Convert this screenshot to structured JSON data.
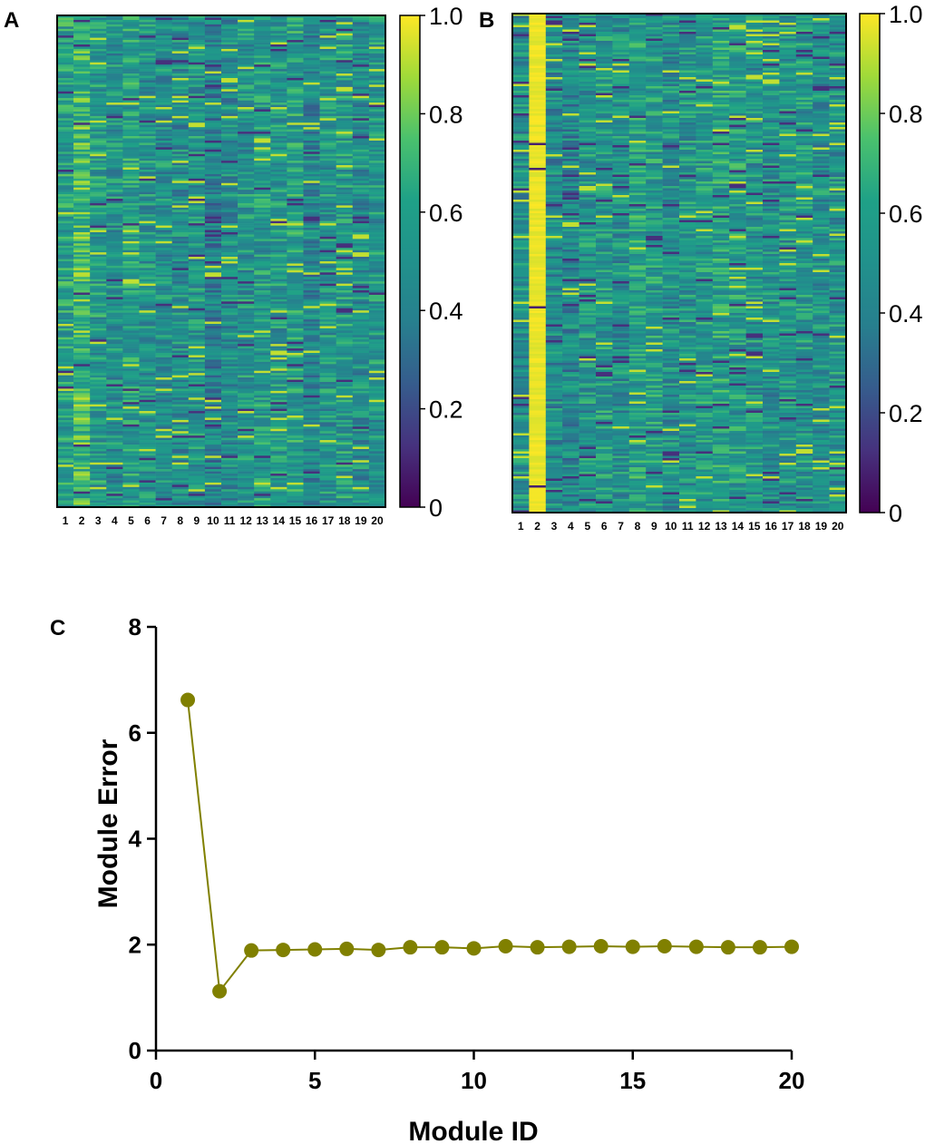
{
  "chart_data": [
    {
      "id": "A",
      "type": "heatmap",
      "panel_label": "A",
      "colormap": "viridis",
      "columns": [
        "1",
        "2",
        "3",
        "4",
        "5",
        "6",
        "7",
        "8",
        "9",
        "10",
        "11",
        "12",
        "13",
        "14",
        "15",
        "16",
        "17",
        "18",
        "19",
        "20"
      ],
      "column_mean_values": [
        0.58,
        0.7,
        0.55,
        0.5,
        0.57,
        0.52,
        0.5,
        0.49,
        0.52,
        0.42,
        0.48,
        0.52,
        0.55,
        0.53,
        0.58,
        0.45,
        0.52,
        0.55,
        0.5,
        0.53
      ],
      "value_range": [
        0,
        1
      ],
      "colorbar_ticks": [
        "0",
        "0.2",
        "0.4",
        "0.6",
        "0.8",
        "1.0"
      ],
      "colorbar_tick_values": [
        0,
        0.2,
        0.4,
        0.6,
        0.8,
        1.0
      ]
    },
    {
      "id": "B",
      "type": "heatmap",
      "panel_label": "B",
      "colormap": "viridis",
      "columns": [
        "1",
        "2",
        "3",
        "4",
        "5",
        "6",
        "7",
        "8",
        "9",
        "10",
        "11",
        "12",
        "13",
        "14",
        "15",
        "16",
        "17",
        "18",
        "19",
        "20"
      ],
      "column_mean_values": [
        0.5,
        0.97,
        0.48,
        0.45,
        0.52,
        0.55,
        0.5,
        0.58,
        0.55,
        0.5,
        0.52,
        0.55,
        0.58,
        0.56,
        0.52,
        0.5,
        0.52,
        0.54,
        0.5,
        0.52
      ],
      "value_range": [
        0,
        1
      ],
      "colorbar_ticks": [
        "0",
        "0.2",
        "0.4",
        "0.6",
        "0.8",
        "1.0"
      ],
      "colorbar_tick_values": [
        0,
        0.2,
        0.4,
        0.6,
        0.8,
        1.0
      ]
    },
    {
      "id": "C",
      "type": "line",
      "panel_label": "C",
      "xlabel": "Module ID",
      "ylabel": "Module Error",
      "x": [
        1,
        2,
        3,
        4,
        5,
        6,
        7,
        8,
        9,
        10,
        11,
        12,
        13,
        14,
        15,
        16,
        17,
        18,
        19,
        20
      ],
      "y": [
        6.62,
        1.12,
        1.89,
        1.9,
        1.91,
        1.92,
        1.9,
        1.95,
        1.95,
        1.93,
        1.97,
        1.95,
        1.96,
        1.97,
        1.96,
        1.97,
        1.96,
        1.95,
        1.95,
        1.96
      ],
      "xlim": [
        0,
        20
      ],
      "ylim": [
        0,
        8
      ],
      "xticks": [
        0,
        5,
        10,
        15,
        20
      ],
      "yticks": [
        0,
        2,
        4,
        6,
        8
      ],
      "color": "#808000"
    }
  ]
}
